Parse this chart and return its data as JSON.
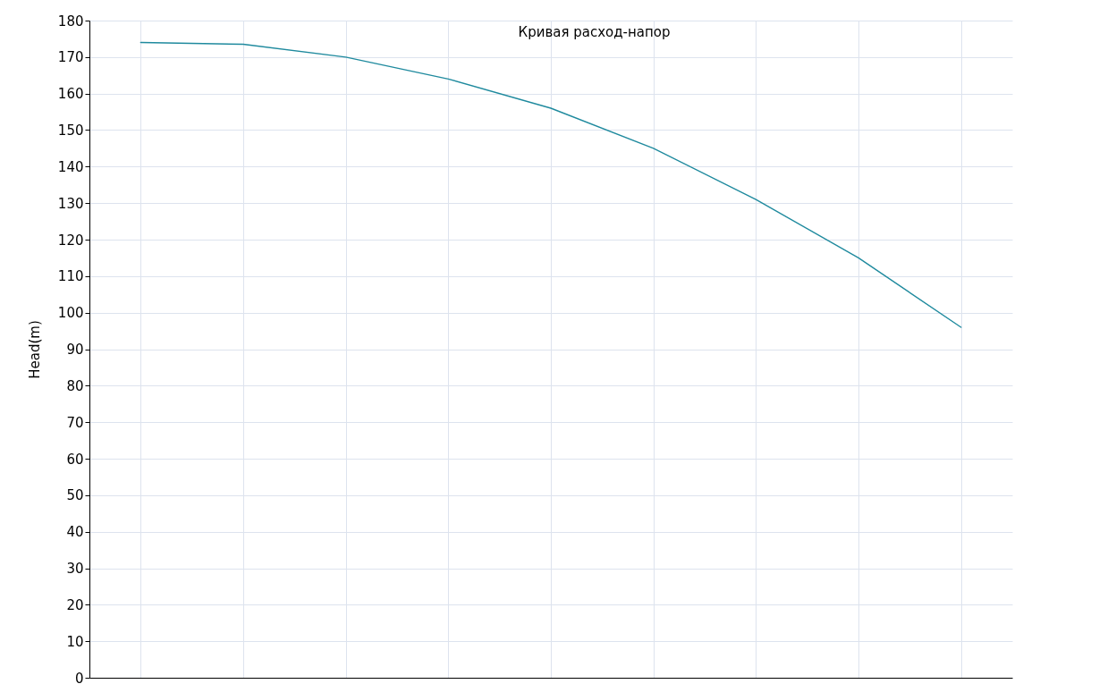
{
  "chart_data": {
    "type": "line",
    "title": "Кривая расход-напор",
    "ylabel": "Head(m)",
    "categories": [
      null,
      null,
      null,
      null,
      null,
      null,
      null,
      null,
      null
    ],
    "series": [
      {
        "color": "#1f8a9e",
        "values": [
          174,
          173.5,
          170,
          164,
          156,
          145,
          131,
          115,
          96
        ]
      }
    ],
    "ylim": [
      0,
      180
    ],
    "yticks": [
      0,
      10,
      20,
      30,
      40,
      50,
      60,
      70,
      80,
      90,
      100,
      110,
      120,
      130,
      140,
      150,
      160,
      170,
      180
    ],
    "grid": true,
    "marker": "none",
    "line_style": "solid",
    "tick_labels": "y"
  }
}
